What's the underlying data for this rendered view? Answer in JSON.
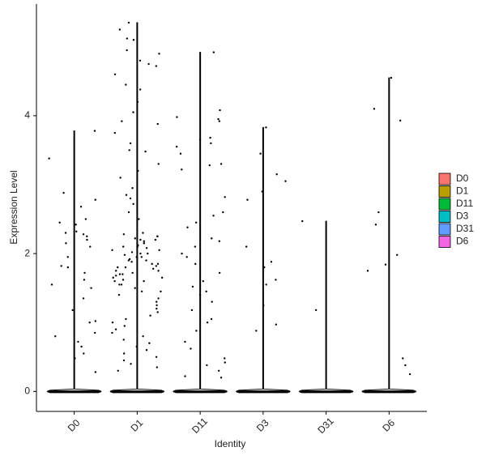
{
  "chart_data": {
    "type": "violin",
    "x_label": "Identity",
    "y_label": "Expression Level",
    "categories": [
      "D0",
      "D1",
      "D11",
      "D3",
      "D31",
      "D6"
    ],
    "colors": [
      "#F8766D",
      "#B79F00",
      "#00BA38",
      "#00BFC4",
      "#619CFF",
      "#F564E3"
    ],
    "max": [
      3.78,
      5.35,
      4.92,
      3.83,
      2.47,
      4.55
    ],
    "points": [
      [
        3.38,
        2.78,
        2.88,
        2.45,
        2.5,
        2.42,
        2.3,
        2.25,
        2.2,
        2.32,
        2.28,
        2.68,
        2.1,
        1.82,
        1.8,
        1.72,
        1.62,
        1.55,
        1.35,
        1.18,
        1.02,
        1.0,
        0.8,
        0.48,
        0.28,
        0.55,
        0.65,
        0.72,
        0.85,
        3.78,
        1.95,
        2.15,
        1.5
      ],
      [
        5.35,
        5.25,
        5.12,
        5.1,
        4.95,
        4.9,
        4.8,
        4.75,
        4.72,
        4.6,
        4.45,
        4.38,
        4.2,
        4.05,
        3.92,
        3.88,
        3.75,
        3.6,
        3.5,
        3.48,
        3.3,
        3.2,
        3.1,
        2.95,
        2.85,
        2.8,
        2.72,
        2.6,
        2.5,
        2.3,
        2.28,
        2.25,
        2.22,
        2.2,
        2.18,
        2.15,
        2.12,
        2.1,
        2.08,
        2.05,
        2.02,
        2.0,
        1.98,
        1.95,
        1.92,
        1.9,
        1.88,
        1.85,
        1.82,
        1.8,
        1.78,
        1.75,
        1.72,
        1.7,
        1.68,
        1.65,
        1.62,
        1.6,
        1.55,
        1.5,
        1.45,
        1.4,
        1.35,
        1.3,
        1.25,
        1.2,
        1.15,
        1.1,
        1.05,
        1.0,
        0.95,
        0.9,
        0.85,
        0.8,
        0.75,
        0.7,
        0.65,
        0.6,
        0.55,
        0.5,
        0.45,
        0.4,
        0.35,
        0.3,
        1.95,
        2.05,
        1.85,
        2.15,
        1.75,
        1.65,
        2.25,
        1.55,
        1.45,
        2.0,
        1.9,
        1.8,
        2.1,
        1.7,
        2.2,
        1.6
      ],
      [
        4.92,
        3.68,
        3.6,
        3.65,
        3.55,
        3.45,
        3.3,
        3.22,
        3.28,
        4.08,
        3.98,
        3.92,
        3.95,
        2.82,
        2.6,
        2.55,
        2.45,
        2.38,
        2.22,
        2.18,
        2.1,
        1.95,
        1.85,
        1.72,
        1.6,
        1.52,
        1.45,
        1.3,
        1.18,
        1.05,
        0.88,
        0.72,
        0.62,
        0.48,
        0.42,
        0.38,
        0.3,
        0.2,
        0.22,
        1.0,
        2.0,
        1.4
      ],
      [
        3.83,
        3.15,
        3.05,
        2.9,
        2.78,
        3.45,
        2.1,
        1.88,
        1.8,
        1.55,
        1.25,
        0.97,
        0.88,
        1.62
      ],
      [
        2.47,
        1.18
      ],
      [
        4.55,
        4.1,
        3.93,
        2.6,
        2.42,
        1.98,
        1.84,
        1.75,
        0.48,
        0.38,
        0.25
      ]
    ],
    "ylim": [
      -0.29,
      5.62
    ],
    "yticks": [
      0,
      2,
      4
    ]
  }
}
